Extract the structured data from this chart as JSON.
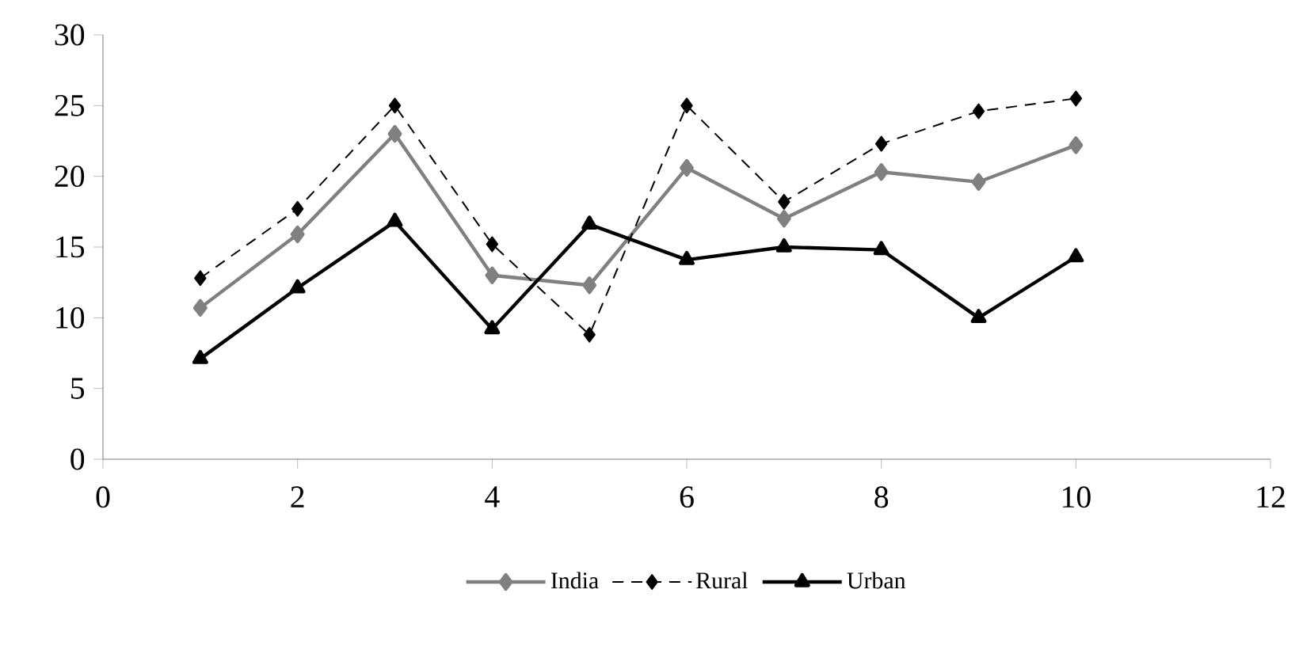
{
  "chart_data": {
    "type": "line",
    "x": [
      1,
      2,
      3,
      4,
      5,
      6,
      7,
      8,
      9,
      10
    ],
    "series": [
      {
        "name": "India",
        "color": "#808080",
        "marker": "diamond",
        "line_style": "solid",
        "values": [
          10.7,
          15.9,
          23,
          13,
          12.3,
          20.6,
          17,
          20.3,
          19.6,
          22.2
        ]
      },
      {
        "name": "Rural",
        "color": "#000000",
        "marker": "diamond",
        "line_style": "dashed",
        "values": [
          12.8,
          17.7,
          25,
          15.2,
          8.8,
          25,
          18.2,
          22.3,
          24.6,
          25.5
        ]
      },
      {
        "name": "Urban",
        "color": "#000000",
        "marker": "triangle",
        "line_style": "solid",
        "values": [
          7.1,
          12.1,
          16.8,
          9.2,
          16.6,
          14.1,
          15,
          14.8,
          10,
          14.3
        ]
      }
    ],
    "xlim": [
      0,
      12
    ],
    "xticks": [
      0,
      2,
      4,
      6,
      8,
      10,
      12
    ],
    "ylim": [
      0,
      30
    ],
    "yticks": [
      0,
      5,
      10,
      15,
      20,
      25,
      30
    ],
    "grid": false,
    "legend": "bottom"
  }
}
